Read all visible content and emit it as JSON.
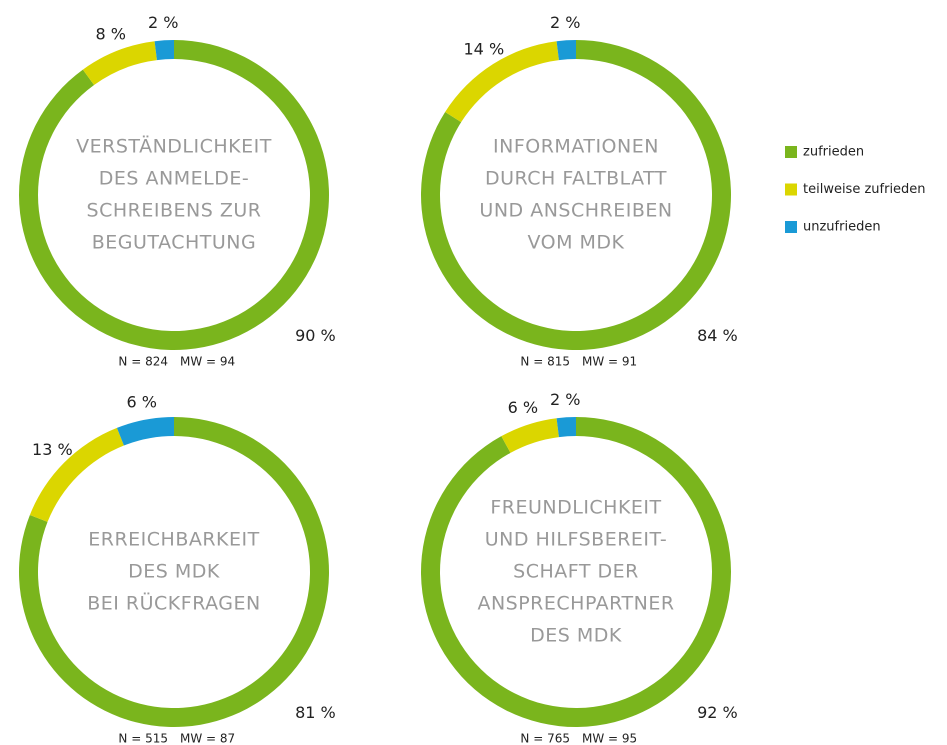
{
  "chart_data": [
    {
      "type": "donut",
      "title_lines": [
        "VERSTÄNDLICHKEIT",
        "DES ANMELDE-",
        "SCHREIBENS ZUR",
        "BEGUTACHTUNG"
      ],
      "categories": [
        "zufrieden",
        "teilweise zufrieden",
        "unzufrieden"
      ],
      "colors": [
        "#7ab51d",
        "#dbd600",
        "#1a9ad6"
      ],
      "values": [
        90,
        8,
        2
      ],
      "value_labels": [
        "90 %",
        "8 %",
        "2 %"
      ],
      "n": "N = 824",
      "mw": "MW = 94"
    },
    {
      "type": "donut",
      "title_lines": [
        "INFORMATIONEN",
        "DURCH FALTBLATT",
        "UND ANSCHREIBEN",
        "VOM MDK"
      ],
      "categories": [
        "zufrieden",
        "teilweise zufrieden",
        "unzufrieden"
      ],
      "colors": [
        "#7ab51d",
        "#dbd600",
        "#1a9ad6"
      ],
      "values": [
        84,
        14,
        2
      ],
      "value_labels": [
        "84 %",
        "14 %",
        "2 %"
      ],
      "n": "N = 815",
      "mw": "MW = 91"
    },
    {
      "type": "donut",
      "title_lines": [
        "ERREICHBARKEIT",
        "DES MDK",
        "BEI RÜCKFRAGEN"
      ],
      "categories": [
        "zufrieden",
        "teilweise zufrieden",
        "unzufrieden"
      ],
      "colors": [
        "#7ab51d",
        "#dbd600",
        "#1a9ad6"
      ],
      "values": [
        81,
        13,
        6
      ],
      "value_labels": [
        "81 %",
        "13 %",
        "6 %"
      ],
      "n": "N = 515",
      "mw": "MW = 87"
    },
    {
      "type": "donut",
      "title_lines": [
        "FREUNDLICHKEIT",
        "UND HILFSBEREIT-",
        "SCHAFT DER",
        "ANSPRECHPARTNER",
        "DES MDK"
      ],
      "categories": [
        "zufrieden",
        "teilweise zufrieden",
        "unzufrieden"
      ],
      "colors": [
        "#7ab51d",
        "#dbd600",
        "#1a9ad6"
      ],
      "values": [
        92,
        6,
        2
      ],
      "value_labels": [
        "92 %",
        "6 %",
        "2 %"
      ],
      "n": "N = 765",
      "mw": "MW = 95"
    }
  ]
}
